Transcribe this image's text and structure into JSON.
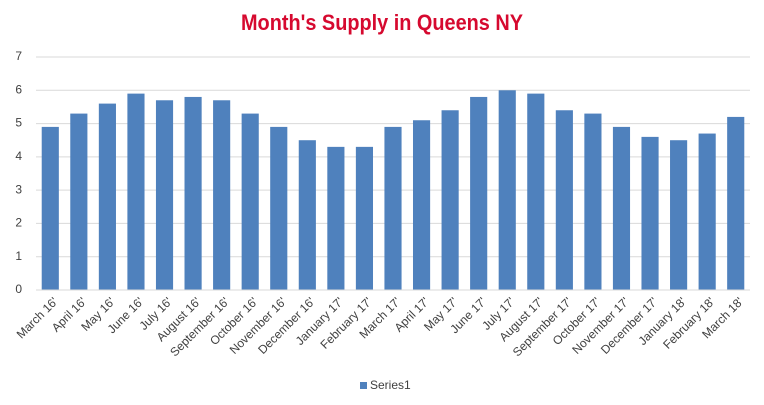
{
  "chart_data": {
    "type": "bar",
    "title": "Month's Supply in Queens NY",
    "categories": [
      "March 16'",
      "April 16'",
      "May 16'",
      "June 16'",
      "July 16'",
      "August 16'",
      "September 16'",
      "October 16'",
      "November 16'",
      "December 16'",
      "January 17'",
      "February 17'",
      "March 17'",
      "April 17'",
      "May 17'",
      "June 17'",
      "July 17'",
      "August 17'",
      "September 17'",
      "October 17'",
      "November 17'",
      "December 17'",
      "January 18'",
      "February 18'",
      "March 18'"
    ],
    "series": [
      {
        "name": "Series1",
        "color": "#4f81bd",
        "values": [
          4.9,
          5.3,
          5.6,
          5.9,
          5.7,
          5.8,
          5.7,
          5.3,
          4.9,
          4.5,
          4.3,
          4.3,
          4.9,
          5.1,
          5.4,
          5.8,
          6.0,
          5.9,
          5.4,
          5.3,
          4.9,
          4.6,
          4.5,
          4.7,
          5.2
        ]
      }
    ],
    "ylim": [
      0,
      7
    ],
    "yticks": [
      0,
      1,
      2,
      3,
      4,
      5,
      6,
      7
    ],
    "grid": true,
    "legend": "bottom"
  }
}
